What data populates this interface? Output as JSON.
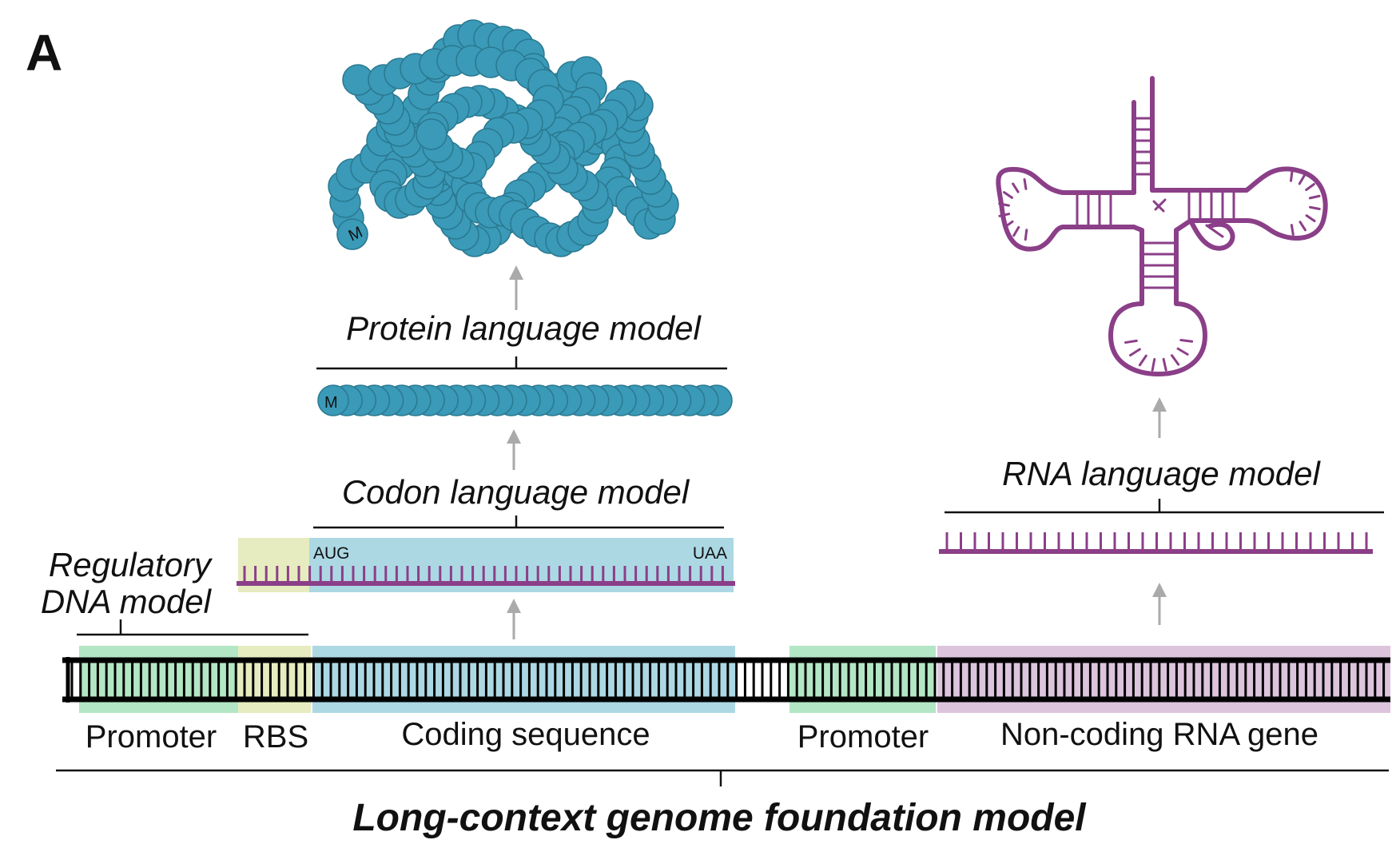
{
  "panel_label": "A",
  "models": {
    "protein": "Protein language model",
    "codon": "Codon language model",
    "regulatory_line1": "Regulatory",
    "regulatory_line2": "DNA model",
    "rna": "RNA language model",
    "genome": "Long-context genome foundation model"
  },
  "codons": {
    "start": "AUG",
    "stop": "UAA"
  },
  "residue_label": "M",
  "regions": {
    "promoter1": "Promoter",
    "rbs": "RBS",
    "coding": "Coding sequence",
    "promoter2": "Promoter",
    "ncrna": "Non-coding RNA gene"
  },
  "colors": {
    "protein": "#3a9ab8",
    "protein_stroke": "#2a7890",
    "rna": "#8b3f88",
    "promoter": "#b3e6c4",
    "rbs": "#e6ecbf",
    "coding": "#acd8e4",
    "ncrna": "#dcc4dd",
    "arrow": "#aaaaaa",
    "dna": "#000000"
  },
  "icons": [
    "folded-protein-icon",
    "linear-protein-chain-icon",
    "trna-structure-icon",
    "mrna-strand-icon",
    "rna-strand-icon",
    "dna-double-helix-icon"
  ]
}
